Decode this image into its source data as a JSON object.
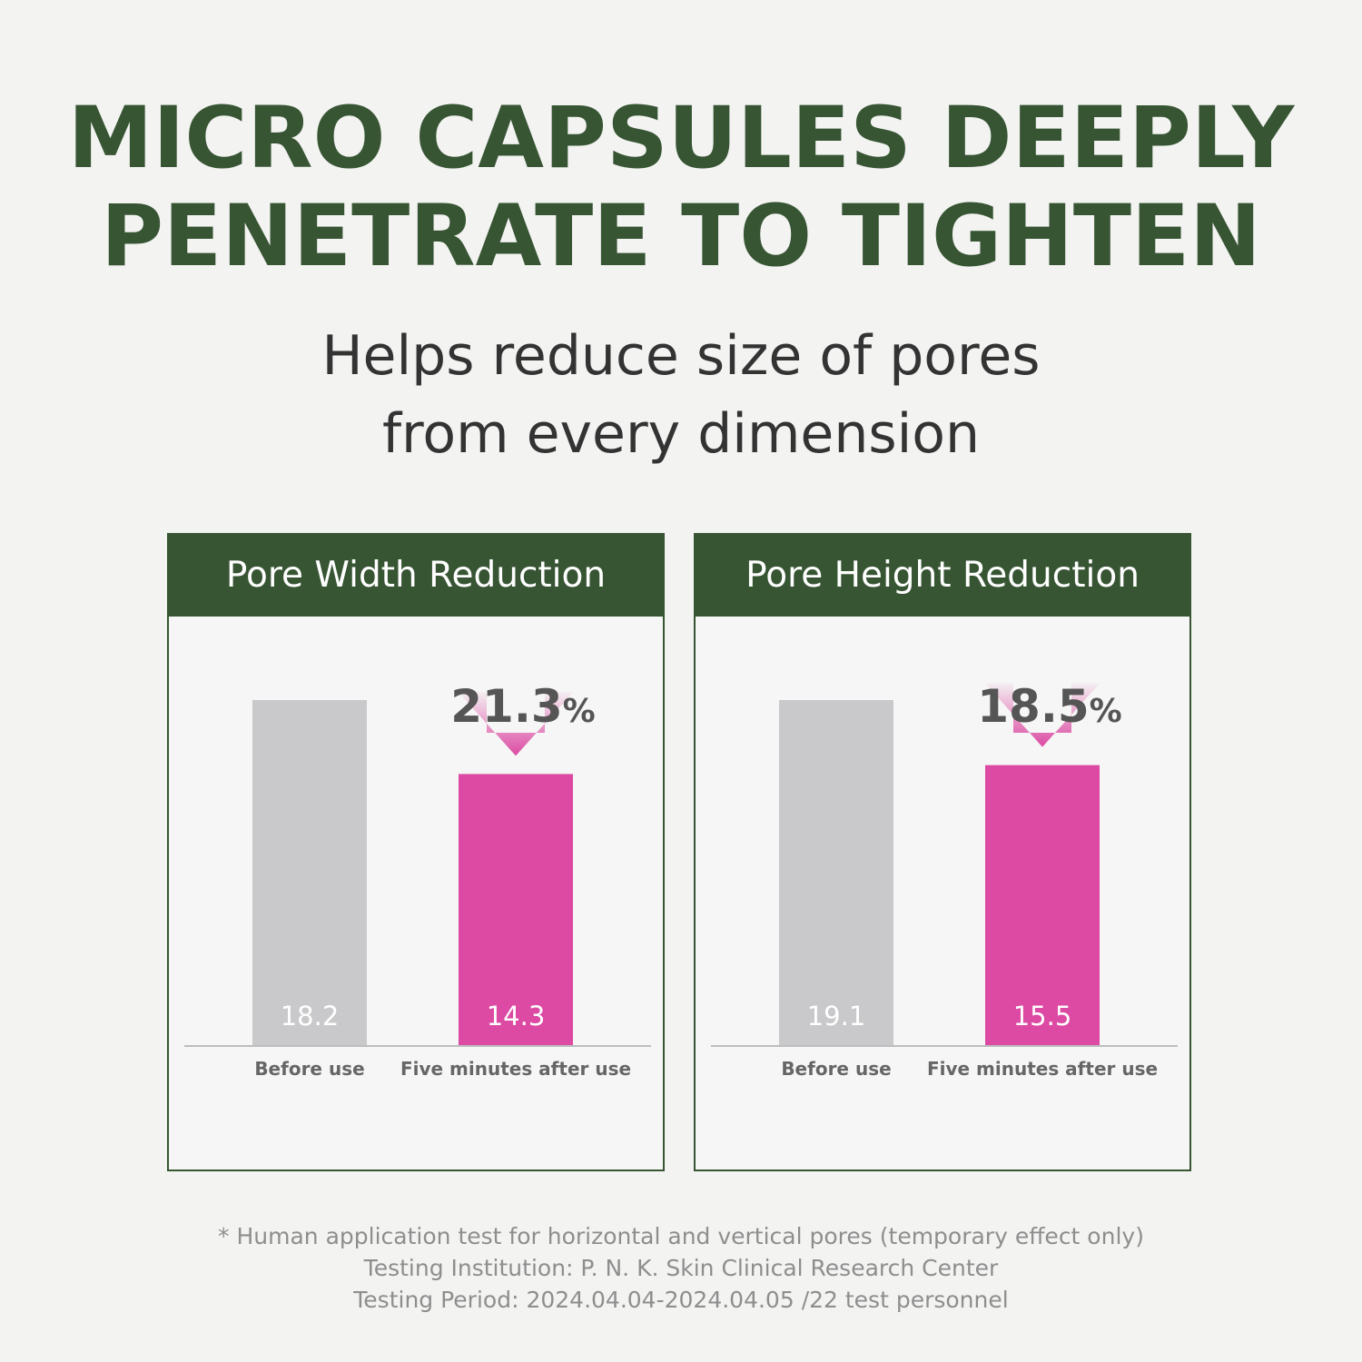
{
  "headline": {
    "line1": "MICRO CAPSULES DEEPLY",
    "line2": "PENETRATE TO TIGHTEN"
  },
  "subtitle": {
    "line1": "Helps reduce size of pores",
    "line2": "from every dimension"
  },
  "colors": {
    "brand_green": "#375533",
    "before_bar": "#c9c9cb",
    "after_bar": "#dc4aa3",
    "text_dark": "#333333",
    "footnote": "#8e8e8e"
  },
  "chart_data": [
    {
      "type": "bar",
      "title": "Pore Width Reduction",
      "categories": [
        "Before use",
        "Five minutes after use"
      ],
      "values": [
        18.2,
        14.3
      ],
      "data_labels": [
        "18.2",
        "14.3"
      ],
      "reduction": {
        "value": "21.3",
        "unit": "%"
      },
      "ylim": [
        0,
        18.2
      ]
    },
    {
      "type": "bar",
      "title": "Pore Height Reduction",
      "categories": [
        "Before use",
        "Five minutes after use"
      ],
      "values": [
        19.1,
        15.5
      ],
      "data_labels": [
        "19.1",
        "15.5"
      ],
      "reduction": {
        "value": "18.5",
        "unit": "%"
      },
      "ylim": [
        0,
        19.1
      ]
    }
  ],
  "footnote": {
    "line1": "* Human application test for horizontal and vertical pores (temporary effect only)",
    "line2": "Testing Institution: P. N. K. Skin Clinical Research Center",
    "line3": "Testing Period: 2024.04.04-2024.04.05 /22 test personnel"
  }
}
